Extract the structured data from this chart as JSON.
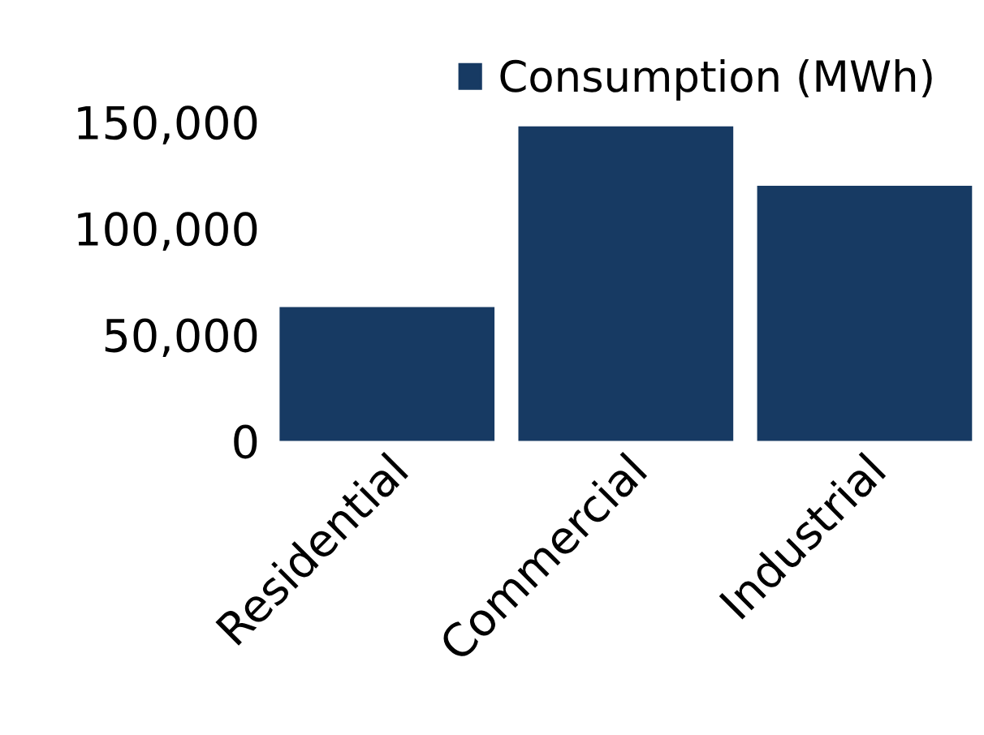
{
  "chart_data": {
    "type": "bar",
    "categories": [
      "Residential",
      "Commercial",
      "Industrial"
    ],
    "series": [
      {
        "name": "Consumption (MWh)",
        "color": "#173a63",
        "values": [
          63000,
          148000,
          120000
        ]
      }
    ],
    "ylim": [
      0,
      150000
    ],
    "yticks": [
      {
        "value": 0,
        "label": "0"
      },
      {
        "value": 50000,
        "label": "50,000"
      },
      {
        "value": 100000,
        "label": "100,000"
      },
      {
        "value": 150000,
        "label": "150,000"
      }
    ],
    "grid": false,
    "legend": "top"
  }
}
